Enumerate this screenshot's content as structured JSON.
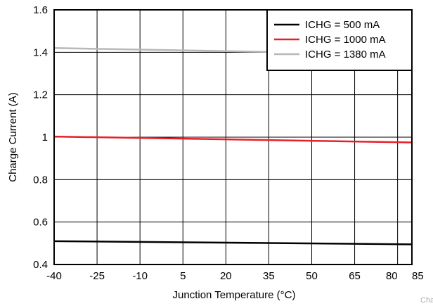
{
  "chart_data": {
    "type": "line",
    "xlabel": "Junction Temperature (°C)",
    "ylabel": "Charge Current (A)",
    "xlim": [
      -40,
      85
    ],
    "ylim": [
      0.4,
      1.6
    ],
    "x_ticks": [
      -40,
      -25,
      -10,
      5,
      20,
      35,
      50,
      65,
      80,
      85
    ],
    "x_tick_labels": [
      "-40",
      "-25",
      "-10",
      "5",
      "20",
      "35",
      "50",
      "65",
      "80",
      "85"
    ],
    "y_ticks": [
      0.4,
      0.6,
      0.8,
      1,
      1.2,
      1.4,
      1.6
    ],
    "y_tick_labels": [
      "0.4",
      "0.6",
      "0.8",
      "1",
      "1.2",
      "1.4",
      "1.6"
    ],
    "grid": true,
    "legend_position": "top-right",
    "series": [
      {
        "name": "ICHG = 500 mA",
        "color": "#000000",
        "x": [
          -40,
          85
        ],
        "y": [
          0.51,
          0.495
        ]
      },
      {
        "name": "ICHG = 1000 mA",
        "color": "#e8202a",
        "x": [
          -40,
          85
        ],
        "y": [
          1.003,
          0.975
        ]
      },
      {
        "name": "ICHG = 1380 mA",
        "color": "#b8b8b8",
        "x": [
          -40,
          85
        ],
        "y": [
          1.42,
          1.39
        ]
      }
    ]
  },
  "watermark": "Char"
}
